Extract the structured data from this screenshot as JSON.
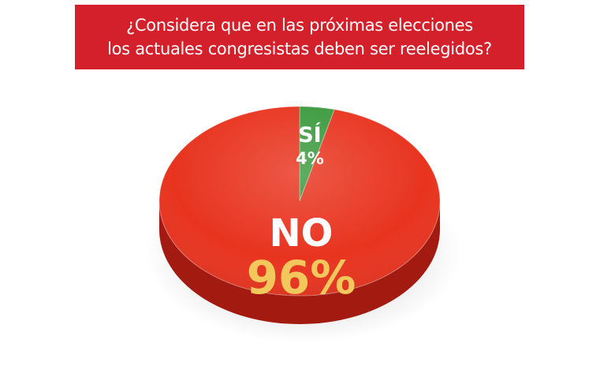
{
  "chart_data": {
    "type": "pie",
    "title_lines": [
      "¿Considera que en las próximas elecciones",
      "los actuales congresistas deben ser reelegidos?"
    ],
    "slices": [
      {
        "label": "SÍ",
        "value": 4,
        "value_text": "4%",
        "color": "#3c9a3e",
        "side_color": "#236b26"
      },
      {
        "label": "NO",
        "value": 96,
        "value_text": "96%",
        "color": "#e8341f",
        "side_color": "#a31a10"
      }
    ],
    "label_colors": {
      "SÍ": "#ffffff",
      "NO": "#ffffff",
      "NO_value": "#f2c75c"
    },
    "banner_color": "#d4202a"
  }
}
